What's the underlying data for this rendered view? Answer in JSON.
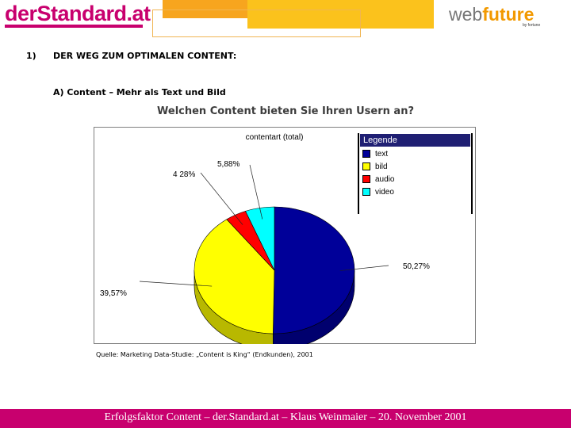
{
  "header": {
    "logo_left": "derStandard.at",
    "logo_right_web": "web",
    "logo_right_future": "future",
    "logo_right_sub": "by fortune"
  },
  "section": {
    "number": "1)",
    "title": "DER WEG ZUM OPTIMALEN CONTENT:",
    "subtitle": "A) Content – Mehr als Text und Bild"
  },
  "question": "Welchen Content bieten Sie Ihren Usern an?",
  "source": "Quelle: Marketing Data-Studie: „Content is King“ (Endkunden), 2001",
  "footer": "Erfolgsfaktor Content – der.Standard.at – Klaus Weinmaier – 20. November 2001",
  "colors": {
    "brand": "#c8006e",
    "orange": "#f7a51e",
    "gold": "#fbc21c",
    "legend_header": "#1f1f73"
  },
  "chart_data": {
    "type": "pie",
    "title": "contentart (total)",
    "legend_title": "Legende",
    "legend_placement": "top-right",
    "slices": [
      {
        "name": "text",
        "value": 50.27,
        "label": "50,27%",
        "color": "#000099"
      },
      {
        "name": "bild",
        "value": 39.57,
        "label": "39,57%",
        "color": "#ffff00"
      },
      {
        "name": "audio",
        "value": 4.28,
        "label": "4 28%",
        "color": "#ff0000"
      },
      {
        "name": "video",
        "value": 5.88,
        "label": "5,88%",
        "color": "#00ffff"
      }
    ]
  }
}
